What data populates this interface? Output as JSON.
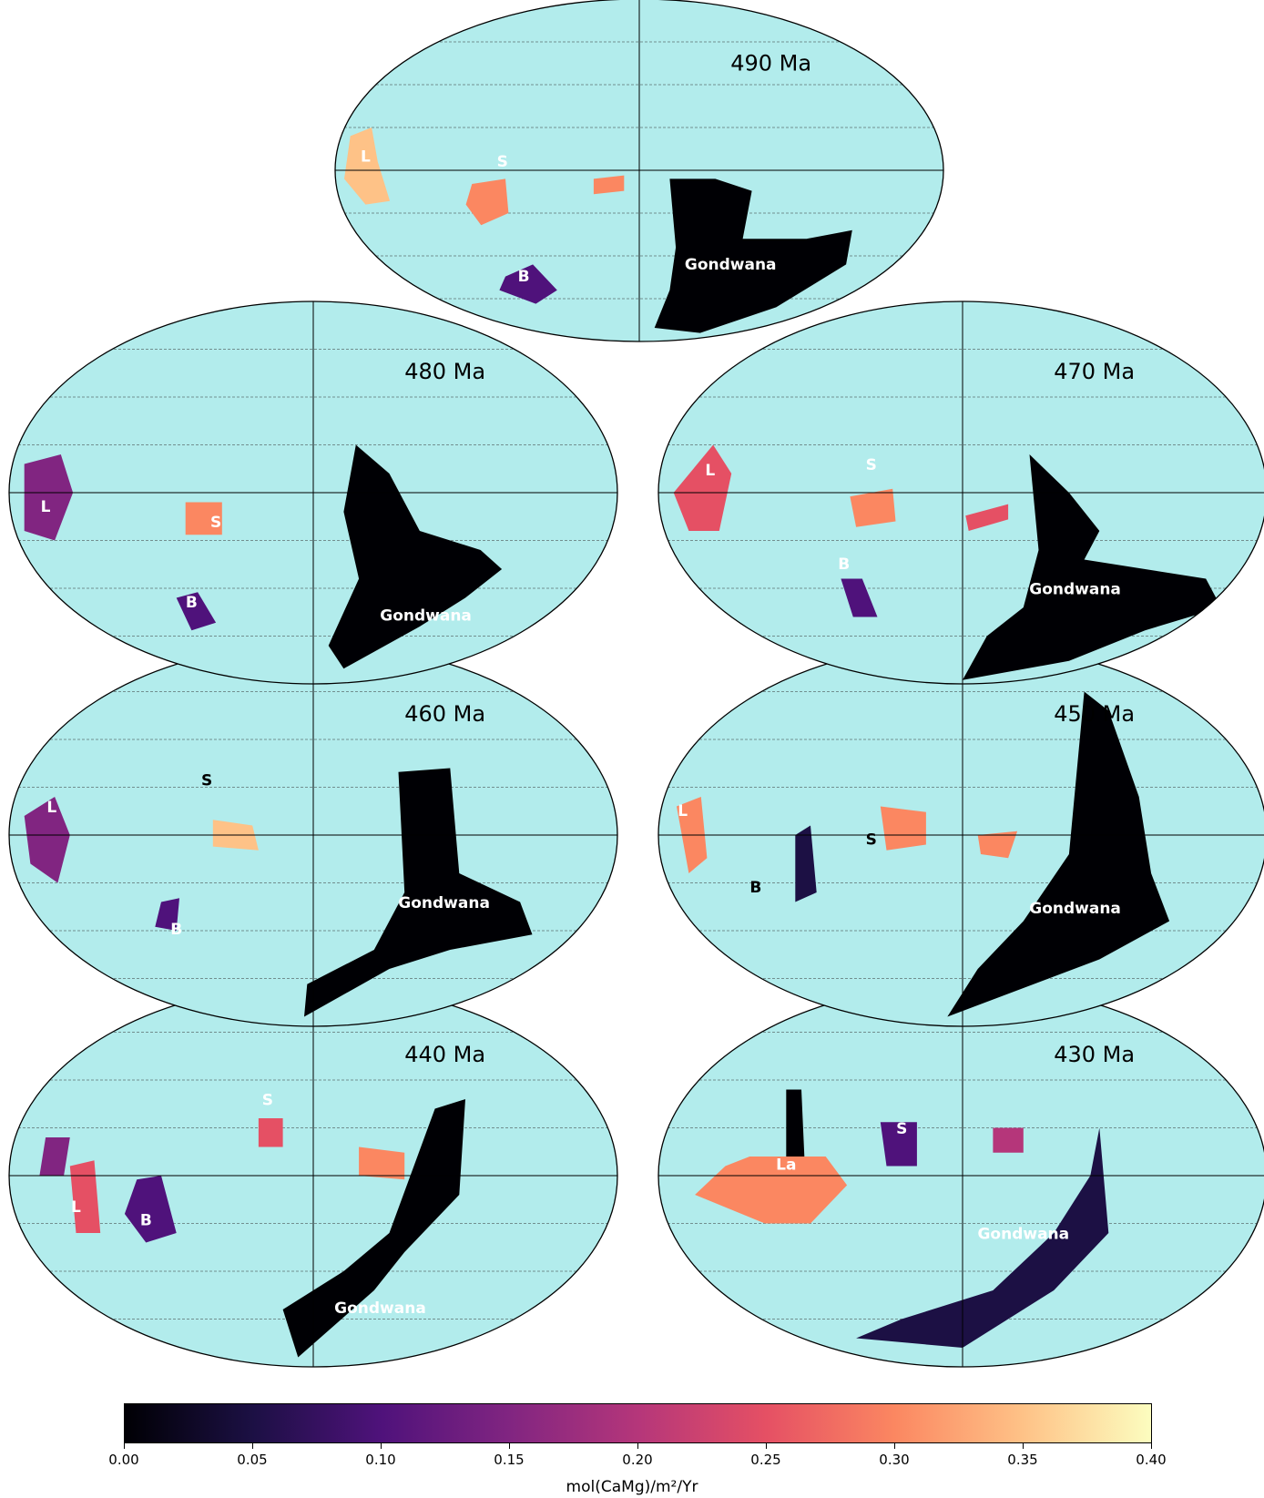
{
  "colors": {
    "ocean": "#b2ecec",
    "grid": "#333333",
    "outline": "#000000",
    "colormap": [
      "#000004",
      "#1c1044",
      "#4f127b",
      "#812581",
      "#b5367a",
      "#e55064",
      "#fb8761",
      "#fec287",
      "#fcfdbf"
    ]
  },
  "maps": [
    {
      "age": "490 Ma",
      "labels": [
        {
          "text": "L",
          "style": "light"
        },
        {
          "text": "S",
          "style": "light"
        },
        {
          "text": "B",
          "style": "light"
        },
        {
          "text": "Gondwana",
          "style": "light"
        }
      ]
    },
    {
      "age": "480 Ma",
      "labels": [
        {
          "text": "L",
          "style": "light"
        },
        {
          "text": "S",
          "style": "light"
        },
        {
          "text": "B",
          "style": "light"
        },
        {
          "text": "Gondwana",
          "style": "light"
        }
      ]
    },
    {
      "age": "470 Ma",
      "labels": [
        {
          "text": "L",
          "style": "light"
        },
        {
          "text": "S",
          "style": "light"
        },
        {
          "text": "B",
          "style": "light"
        },
        {
          "text": "Gondwana",
          "style": "light"
        }
      ]
    },
    {
      "age": "460 Ma",
      "labels": [
        {
          "text": "L",
          "style": "light"
        },
        {
          "text": "S",
          "style": "dark"
        },
        {
          "text": "B",
          "style": "light"
        },
        {
          "text": "Gondwana",
          "style": "light"
        }
      ]
    },
    {
      "age": "450 Ma",
      "labels": [
        {
          "text": "L",
          "style": "light"
        },
        {
          "text": "S",
          "style": "dark"
        },
        {
          "text": "B",
          "style": "dark"
        },
        {
          "text": "Gondwana",
          "style": "light"
        }
      ]
    },
    {
      "age": "440 Ma",
      "labels": [
        {
          "text": "S",
          "style": "light"
        },
        {
          "text": "L",
          "style": "light"
        },
        {
          "text": "B",
          "style": "light"
        },
        {
          "text": "Gondwana",
          "style": "light"
        }
      ]
    },
    {
      "age": "430 Ma",
      "labels": [
        {
          "text": "La",
          "style": "light"
        },
        {
          "text": "S",
          "style": "light"
        },
        {
          "text": "Gondwana",
          "style": "light"
        }
      ]
    }
  ],
  "colorbar": {
    "min": 0.0,
    "max": 0.4,
    "ticks": [
      "0.00",
      "0.05",
      "0.10",
      "0.15",
      "0.20",
      "0.25",
      "0.30",
      "0.35",
      "0.40"
    ],
    "label": "mol(CaMg)/m²/Yr"
  }
}
